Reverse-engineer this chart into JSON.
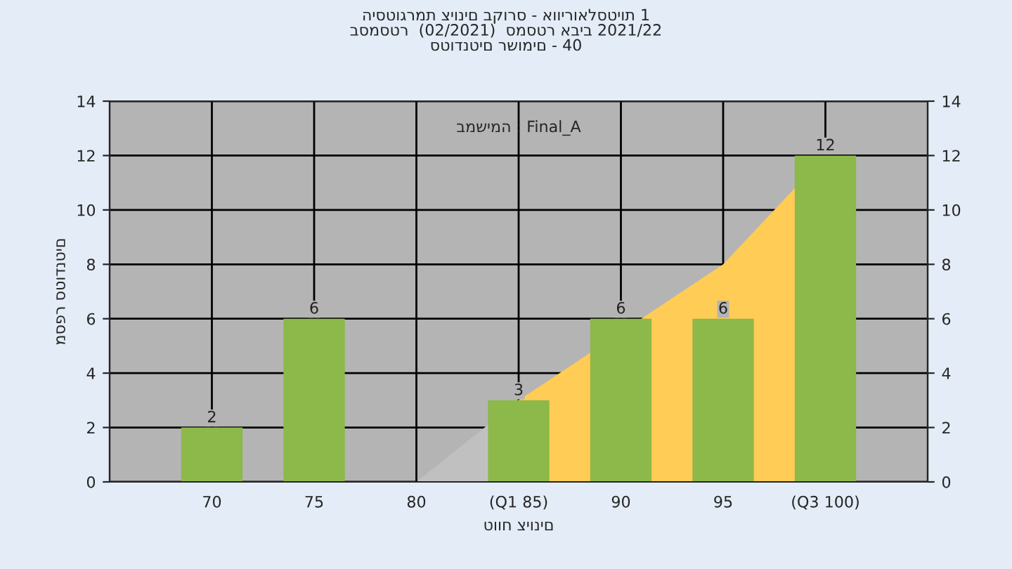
{
  "chart_data": {
    "type": "bar",
    "title": "היסטוגרמת ציונים בקורס - אווירואלסטיות 1\nבסמסטר  (02/2021)  סמסטר אביב 2021/22\nסטודנטים רשומים - 40",
    "xlabel": "טווח ציונים",
    "ylabel": "מספר סטודנטים",
    "annotations": [
      "במשימה : Final_A"
    ],
    "categories": [
      "70",
      "75",
      "80",
      "(Q1 85)",
      "90",
      "95",
      "(Q3 100)"
    ],
    "series": [
      {
        "type": "area",
        "color": "#c0c0c0",
        "values": [
          null,
          null,
          0,
          3,
          null,
          null,
          null
        ]
      },
      {
        "type": "area",
        "color": "#ffcc55",
        "values": [
          null,
          null,
          null,
          3,
          null,
          8,
          12
        ]
      },
      {
        "color": "#8db84a",
        "values": [
          2,
          6,
          0,
          3,
          6,
          6,
          12
        ],
        "value_labels": [
          "2",
          "6",
          null,
          "3",
          "6",
          "6",
          "12"
        ]
      }
    ],
    "ylim": [
      0,
      14
    ],
    "yticks": [
      0,
      2,
      4,
      6,
      8,
      10,
      12,
      14
    ],
    "y2lim": [
      0,
      14
    ],
    "y2ticks": [
      0,
      2,
      4,
      6,
      8,
      10,
      12,
      14
    ],
    "grid": true,
    "legend": false
  }
}
